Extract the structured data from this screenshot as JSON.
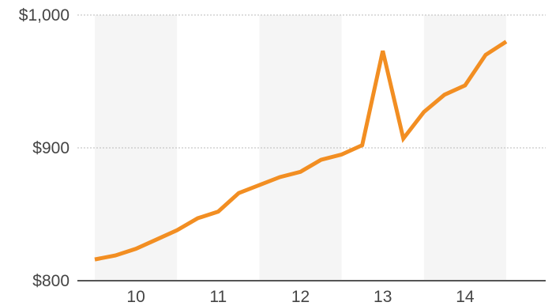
{
  "chart_data": {
    "type": "line",
    "title": "",
    "xlabel": "",
    "ylabel": "",
    "x": [
      9.5,
      9.75,
      10.0,
      10.25,
      10.5,
      10.75,
      11.0,
      11.25,
      11.5,
      11.75,
      12.0,
      12.25,
      12.5,
      12.75,
      13.0,
      13.25,
      13.5,
      13.75,
      14.0,
      14.25,
      14.5
    ],
    "series": [
      {
        "values": [
          816,
          819,
          824,
          831,
          838,
          847,
          852,
          866,
          872,
          878,
          882,
          891,
          895,
          902,
          973,
          907,
          927,
          940,
          947,
          970,
          980
        ]
      }
    ],
    "xlim": [
      9.5,
      14.5
    ],
    "xticks": [
      {
        "value": 10,
        "label": "10"
      },
      {
        "value": 11,
        "label": "11"
      },
      {
        "value": 12,
        "label": "12"
      },
      {
        "value": 13,
        "label": "13"
      },
      {
        "value": 14,
        "label": "14"
      }
    ],
    "ylim": [
      800,
      1000
    ],
    "yticks": [
      {
        "value": 800,
        "label": "$800"
      },
      {
        "value": 900,
        "label": "$900"
      },
      {
        "value": 1000,
        "label": "$1,000"
      }
    ],
    "grid": true,
    "legend": "none",
    "colors": {
      "line": "#F28E22",
      "band": "#F5F5F5",
      "grid": "#BBBBBB",
      "axis": "#555555",
      "text": "#444444"
    }
  }
}
